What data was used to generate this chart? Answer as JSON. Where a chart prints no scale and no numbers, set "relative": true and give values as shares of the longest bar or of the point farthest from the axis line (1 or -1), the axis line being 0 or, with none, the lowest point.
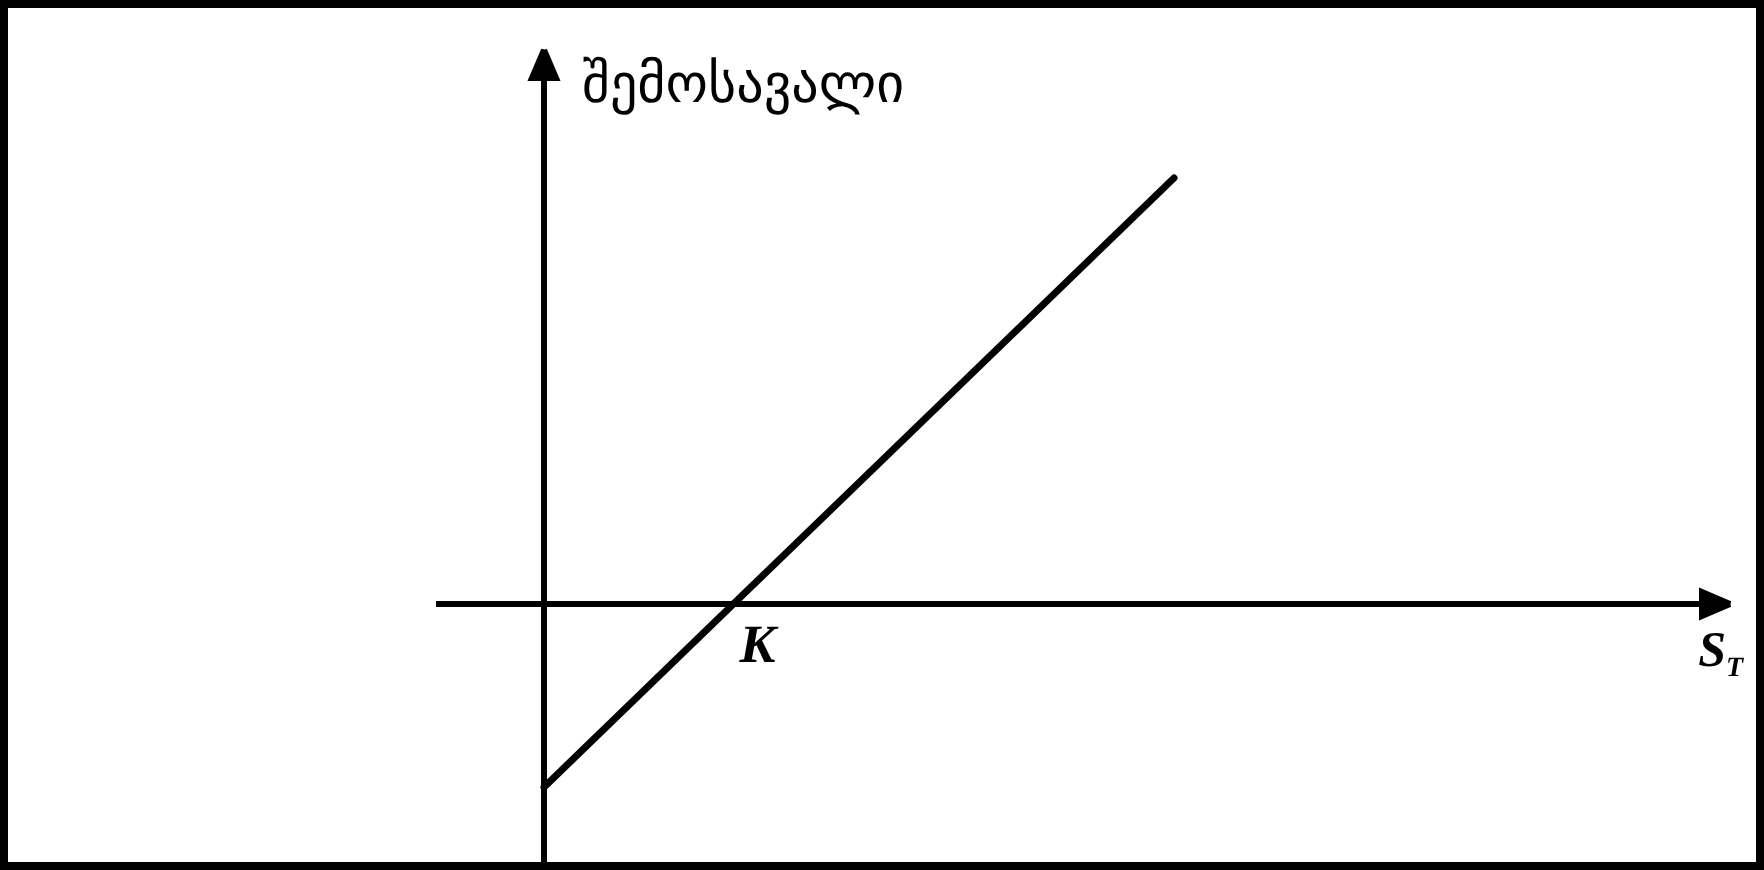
{
  "chart_data": {
    "type": "line",
    "relative": true,
    "categories": [
      null,
      null
    ],
    "values": [
      -0.43,
      1
    ],
    "color": "#000000",
    "line_style": "solid",
    "xlabel": "S$_{T}$",
    "ylabel": "შემოსავალი",
    "annotations": [
      "K"
    ]
  }
}
